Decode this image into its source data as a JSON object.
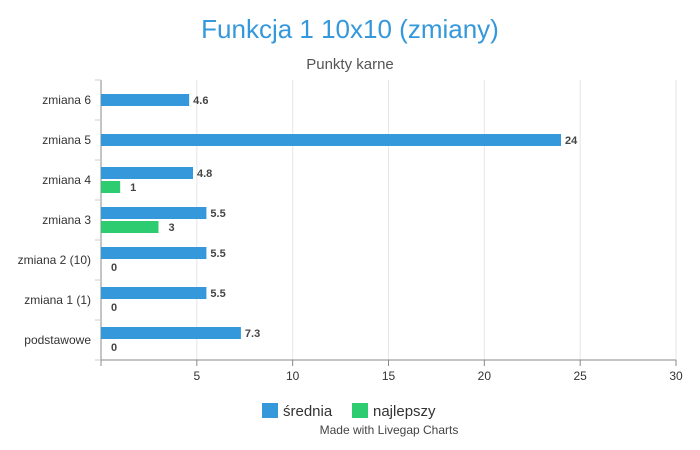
{
  "chart_data": {
    "type": "bar",
    "orientation": "horizontal",
    "title": "Funkcja 1 10x10 (zmiany)",
    "subtitle": "Punkty karne",
    "xlabel": "",
    "ylabel": "",
    "categories": [
      "zmiana 6",
      "zmiana 5",
      "zmiana 4",
      "zmiana 3",
      "zmiana 2 (10)",
      "zmiana 1 (1)",
      "podstawowe"
    ],
    "series": [
      {
        "name": "średnia",
        "color": "#3498db",
        "values": [
          4.6,
          24,
          4.8,
          5.5,
          5.5,
          5.5,
          7.3
        ]
      },
      {
        "name": "najlepszy",
        "color": "#2ecc71",
        "values": [
          null,
          null,
          1,
          3,
          0,
          0,
          0
        ]
      }
    ],
    "xlim": [
      0,
      30
    ],
    "xticks": [
      5,
      10,
      15,
      20,
      25,
      30
    ],
    "grid": true,
    "legend_position": "bottom",
    "title_color": "#3498db"
  },
  "credit": "Made with Livegap Charts"
}
